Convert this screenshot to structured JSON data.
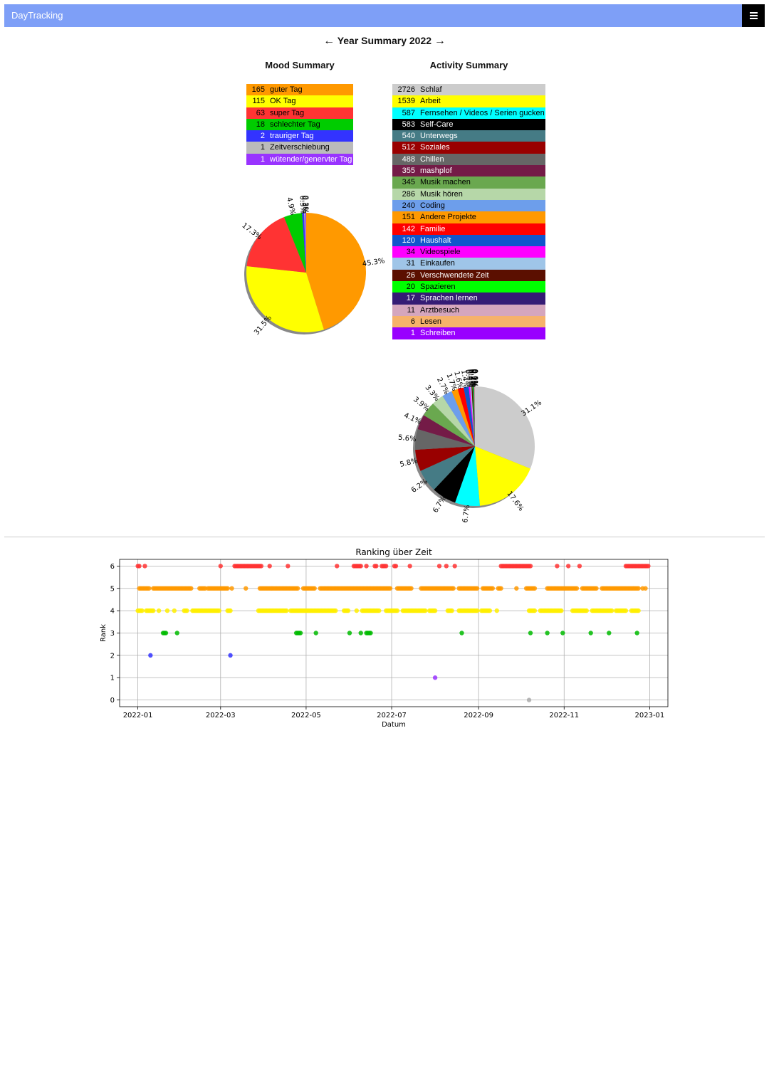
{
  "navbar": {
    "brand": "DayTracking",
    "menu_icon": "hamburger-icon"
  },
  "year_nav": {
    "prev": "←",
    "title": "Year Summary 2022",
    "next": "→"
  },
  "mood": {
    "title": "Mood Summary",
    "rows": [
      {
        "count": "165",
        "label": "guter Tag",
        "color": "#ff9900",
        "text_color": "#000000"
      },
      {
        "count": "115",
        "label": "OK Tag",
        "color": "#ffff00",
        "text_color": "#000000"
      },
      {
        "count": "63",
        "label": "super Tag",
        "color": "#ff3333",
        "text_color": "#000000"
      },
      {
        "count": "18",
        "label": "schlechter Tag",
        "color": "#00cc00",
        "text_color": "#000000"
      },
      {
        "count": "2",
        "label": "trauriger Tag",
        "color": "#3333ff",
        "text_color": "#ffffff"
      },
      {
        "count": "1",
        "label": "Zeitverschiebung",
        "color": "#bbbbbb",
        "text_color": "#000000"
      },
      {
        "count": "1",
        "label": "wütender/genervter Tag",
        "color": "#9933ff",
        "text_color": "#ffffff"
      }
    ]
  },
  "activity": {
    "title": "Activity Summary",
    "rows": [
      {
        "count": "2726",
        "label": "Schlaf",
        "color": "#cccccc",
        "text_color": "#000000"
      },
      {
        "count": "1539",
        "label": "Arbeit",
        "color": "#ffff00",
        "text_color": "#000000"
      },
      {
        "count": "587",
        "label": "Fernsehen / Videos / Serien gucken",
        "color": "#00ffff",
        "text_color": "#000000"
      },
      {
        "count": "583",
        "label": "Self-Care",
        "color": "#000000",
        "text_color": "#ffffff"
      },
      {
        "count": "540",
        "label": "Unterwegs",
        "color": "#457b85",
        "text_color": "#ffffff"
      },
      {
        "count": "512",
        "label": "Soziales",
        "color": "#990000",
        "text_color": "#ffffff"
      },
      {
        "count": "488",
        "label": "Chillen",
        "color": "#666666",
        "text_color": "#ffffff"
      },
      {
        "count": "355",
        "label": "mashplof",
        "color": "#741b47",
        "text_color": "#ffffff"
      },
      {
        "count": "345",
        "label": "Musik machen",
        "color": "#6aa84f",
        "text_color": "#000000"
      },
      {
        "count": "286",
        "label": "Musik hören",
        "color": "#b6d7a8",
        "text_color": "#000000"
      },
      {
        "count": "240",
        "label": "Coding",
        "color": "#6d9eeb",
        "text_color": "#000000"
      },
      {
        "count": "151",
        "label": "Andere Projekte",
        "color": "#ff9900",
        "text_color": "#000000"
      },
      {
        "count": "142",
        "label": "Familie",
        "color": "#ff0000",
        "text_color": "#ffffff"
      },
      {
        "count": "120",
        "label": "Haushalt",
        "color": "#1155cc",
        "text_color": "#ffffff"
      },
      {
        "count": "34",
        "label": "Videospiele",
        "color": "#ff00ff",
        "text_color": "#000000"
      },
      {
        "count": "31",
        "label": "Einkaufen",
        "color": "#9fc5e8",
        "text_color": "#000000"
      },
      {
        "count": "26",
        "label": "Verschwendete Zeit",
        "color": "#5b0f00",
        "text_color": "#ffffff"
      },
      {
        "count": "20",
        "label": "Spazieren",
        "color": "#00ff00",
        "text_color": "#000000"
      },
      {
        "count": "17",
        "label": "Sprachen lernen",
        "color": "#351c75",
        "text_color": "#ffffff"
      },
      {
        "count": "11",
        "label": "Arztbesuch",
        "color": "#d5a6bd",
        "text_color": "#000000"
      },
      {
        "count": "6",
        "label": "Lesen",
        "color": "#f6b26b",
        "text_color": "#000000"
      },
      {
        "count": "1",
        "label": "Schreiben",
        "color": "#9900ff",
        "text_color": "#ffffff"
      }
    ]
  },
  "chart_data": [
    {
      "type": "pie",
      "values": [
        165,
        115,
        63,
        18,
        2,
        1,
        1
      ],
      "categories": [
        "guter Tag",
        "OK Tag",
        "super Tag",
        "schlechter Tag",
        "trauriger Tag",
        "Zeitverschiebung",
        "wütender/genervter Tag"
      ],
      "colors": [
        "#ff9900",
        "#ffff00",
        "#ff3333",
        "#00cc00",
        "#3333ff",
        "#bbbbbb",
        "#9933ff"
      ],
      "labels": [
        "45.3%",
        "31.5%",
        "17.3%",
        "4.9%",
        "0.5%",
        "0.3%",
        "0.3%"
      ]
    },
    {
      "type": "pie",
      "values": [
        2726,
        1539,
        587,
        583,
        540,
        512,
        488,
        355,
        345,
        286,
        240,
        151,
        142,
        120,
        34,
        31,
        26,
        20,
        17,
        11,
        6,
        1
      ],
      "categories": [
        "Schlaf",
        "Arbeit",
        "Fernsehen / Videos / Serien gucken",
        "Self-Care",
        "Unterwegs",
        "Soziales",
        "Chillen",
        "mashplof",
        "Musik machen",
        "Musik hören",
        "Coding",
        "Andere Projekte",
        "Familie",
        "Haushalt",
        "Videospiele",
        "Einkaufen",
        "Verschwendete Zeit",
        "Spazieren",
        "Sprachen lernen",
        "Arztbesuch",
        "Lesen",
        "Schreiben"
      ],
      "colors": [
        "#cccccc",
        "#ffff00",
        "#00ffff",
        "#000000",
        "#457b85",
        "#990000",
        "#666666",
        "#741b47",
        "#6aa84f",
        "#b6d7a8",
        "#6d9eeb",
        "#ff9900",
        "#ff0000",
        "#1155cc",
        "#ff00ff",
        "#9fc5e8",
        "#5b0f00",
        "#00ff00",
        "#351c75",
        "#d5a6bd",
        "#f6b26b",
        "#9900ff"
      ],
      "labels": [
        "31.1%",
        "17.6%",
        "6.7%",
        "6.7%",
        "6.2%",
        "5.8%",
        "5.6%",
        "4.1%",
        "3.9%",
        "3.3%",
        "2.7%",
        "1.7%",
        "1.6%",
        "1.4%",
        "0.4%",
        "0.4%",
        "0.3%",
        "0.2%",
        "0.2%",
        "0.1%",
        "0.1%",
        "0.0%"
      ]
    },
    {
      "type": "scatter",
      "title": "Ranking über Zeit",
      "xlabel": "Datum",
      "ylabel": "Rank",
      "xlim": [
        "2021-12-19",
        "2023-01-14"
      ],
      "ylim": [
        -0.3,
        6.3
      ],
      "x_ticks": [
        "2022-01",
        "2022-03",
        "2022-05",
        "2022-07",
        "2022-09",
        "2022-11",
        "2023-01"
      ],
      "y_ticks": [
        "0",
        "1",
        "2",
        "3",
        "4",
        "5",
        "6"
      ],
      "grid": true,
      "series": [
        {
          "y": 6,
          "color": "#ff3333",
          "ranges": [
            [
              "2022-01-01",
              "2022-01-02"
            ],
            [
              "2022-01-06",
              "2022-01-06"
            ],
            [
              "2022-03-01",
              "2022-03-01"
            ],
            [
              "2022-03-11",
              "2022-03-30"
            ],
            [
              "2022-04-05",
              "2022-04-05"
            ],
            [
              "2022-04-18",
              "2022-04-18"
            ],
            [
              "2022-05-23",
              "2022-05-23"
            ],
            [
              "2022-06-04",
              "2022-06-09"
            ],
            [
              "2022-06-13",
              "2022-06-13"
            ],
            [
              "2022-06-19",
              "2022-06-20"
            ],
            [
              "2022-06-24",
              "2022-06-27"
            ],
            [
              "2022-07-03",
              "2022-07-04"
            ],
            [
              "2022-07-14",
              "2022-07-14"
            ],
            [
              "2022-08-04",
              "2022-08-04"
            ],
            [
              "2022-08-09",
              "2022-08-09"
            ],
            [
              "2022-08-15",
              "2022-08-15"
            ],
            [
              "2022-09-17",
              "2022-10-08"
            ],
            [
              "2022-10-27",
              "2022-10-27"
            ],
            [
              "2022-11-04",
              "2022-11-04"
            ],
            [
              "2022-11-12",
              "2022-11-12"
            ],
            [
              "2022-12-15",
              "2022-12-31"
            ]
          ]
        },
        {
          "y": 5,
          "color": "#ff9900",
          "ranges": [
            [
              "2022-01-02",
              "2022-01-09"
            ],
            [
              "2022-01-12",
              "2022-02-08"
            ],
            [
              "2022-02-14",
              "2022-02-18"
            ],
            [
              "2022-02-20",
              "2022-03-06"
            ],
            [
              "2022-03-09",
              "2022-03-09"
            ],
            [
              "2022-03-19",
              "2022-03-19"
            ],
            [
              "2022-03-29",
              "2022-04-25"
            ],
            [
              "2022-04-29",
              "2022-05-07"
            ],
            [
              "2022-05-11",
              "2022-06-30"
            ],
            [
              "2022-07-05",
              "2022-07-15"
            ],
            [
              "2022-07-22",
              "2022-08-14"
            ],
            [
              "2022-08-18",
              "2022-08-31"
            ],
            [
              "2022-09-04",
              "2022-09-11"
            ],
            [
              "2022-09-15",
              "2022-09-17"
            ],
            [
              "2022-09-28",
              "2022-09-28"
            ],
            [
              "2022-10-05",
              "2022-10-11"
            ],
            [
              "2022-10-20",
              "2022-11-10"
            ],
            [
              "2022-11-14",
              "2022-11-24"
            ],
            [
              "2022-11-28",
              "2022-12-24"
            ],
            [
              "2022-12-27",
              "2022-12-27"
            ],
            [
              "2022-12-29",
              "2022-12-29"
            ]
          ]
        },
        {
          "y": 4,
          "color": "#ffee00",
          "ranges": [
            [
              "2022-01-01",
              "2022-01-04"
            ],
            [
              "2022-01-07",
              "2022-01-12"
            ],
            [
              "2022-01-16",
              "2022-01-16"
            ],
            [
              "2022-01-22",
              "2022-01-22"
            ],
            [
              "2022-01-27",
              "2022-01-27"
            ],
            [
              "2022-02-03",
              "2022-02-05"
            ],
            [
              "2022-02-09",
              "2022-02-28"
            ],
            [
              "2022-03-06",
              "2022-03-08"
            ],
            [
              "2022-03-28",
              "2022-04-17"
            ],
            [
              "2022-04-20",
              "2022-05-22"
            ],
            [
              "2022-05-28",
              "2022-05-31"
            ],
            [
              "2022-06-06",
              "2022-06-06"
            ],
            [
              "2022-06-10",
              "2022-06-22"
            ],
            [
              "2022-06-27",
              "2022-07-05"
            ],
            [
              "2022-07-09",
              "2022-07-25"
            ],
            [
              "2022-07-28",
              "2022-08-01"
            ],
            [
              "2022-08-10",
              "2022-08-13"
            ],
            [
              "2022-08-18",
              "2022-08-31"
            ],
            [
              "2022-09-03",
              "2022-09-09"
            ],
            [
              "2022-09-14",
              "2022-09-14"
            ],
            [
              "2022-10-07",
              "2022-10-11"
            ],
            [
              "2022-10-15",
              "2022-10-30"
            ],
            [
              "2022-11-07",
              "2022-11-17"
            ],
            [
              "2022-11-21",
              "2022-12-05"
            ],
            [
              "2022-12-08",
              "2022-12-15"
            ],
            [
              "2022-12-19",
              "2022-12-24"
            ]
          ]
        },
        {
          "y": 3,
          "color": "#00bb00",
          "ranges": [
            [
              "2022-01-19",
              "2022-01-21"
            ],
            [
              "2022-01-29",
              "2022-01-29"
            ],
            [
              "2022-04-24",
              "2022-04-27"
            ],
            [
              "2022-05-08",
              "2022-05-08"
            ],
            [
              "2022-06-01",
              "2022-06-01"
            ],
            [
              "2022-06-09",
              "2022-06-09"
            ],
            [
              "2022-06-13",
              "2022-06-16"
            ],
            [
              "2022-08-20",
              "2022-08-20"
            ],
            [
              "2022-10-08",
              "2022-10-08"
            ],
            [
              "2022-10-20",
              "2022-10-20"
            ],
            [
              "2022-10-31",
              "2022-10-31"
            ],
            [
              "2022-11-20",
              "2022-11-20"
            ],
            [
              "2022-12-03",
              "2022-12-03"
            ],
            [
              "2022-12-23",
              "2022-12-23"
            ]
          ]
        },
        {
          "y": 2,
          "color": "#3333ff",
          "ranges": [
            [
              "2022-01-10",
              "2022-01-10"
            ],
            [
              "2022-03-08",
              "2022-03-08"
            ]
          ]
        },
        {
          "y": 1,
          "color": "#9933ff",
          "ranges": [
            [
              "2022-08-01",
              "2022-08-01"
            ]
          ]
        },
        {
          "y": 0,
          "color": "#aaaaaa",
          "ranges": [
            [
              "2022-10-07",
              "2022-10-07"
            ]
          ]
        }
      ]
    }
  ]
}
